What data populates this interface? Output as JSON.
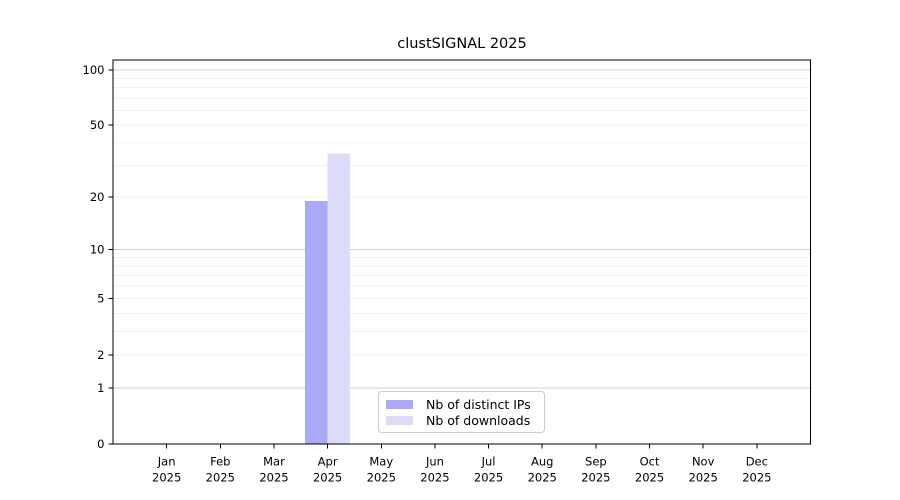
{
  "figure": {
    "background": "#ffffff"
  },
  "chart_data": {
    "type": "bar",
    "title": "clustSIGNAL 2025",
    "categories": [
      "Jan",
      "Feb",
      "Mar",
      "Apr",
      "May",
      "Jun",
      "Jul",
      "Aug",
      "Sep",
      "Oct",
      "Nov",
      "Dec"
    ],
    "x_tick_year_line": "2025",
    "series": [
      {
        "name": "Nb of distinct IPs",
        "key": "distinct-ips",
        "color": "#aaaaf8",
        "values": [
          0,
          0,
          0,
          19,
          0,
          0,
          0,
          0,
          0,
          0,
          0,
          0
        ]
      },
      {
        "name": "Nb of downloads",
        "key": "downloads",
        "color": "#dcdcfa",
        "values": [
          0,
          0,
          0,
          35,
          0,
          0,
          0,
          0,
          0,
          0,
          0,
          0
        ]
      }
    ],
    "yscale": "log1p",
    "ylim": [
      0,
      113
    ],
    "yticks": [
      0,
      1,
      2,
      5,
      10,
      20,
      50,
      100
    ],
    "major_gridlines": [
      1,
      10,
      100
    ],
    "minor_gridlines": [
      2,
      3,
      4,
      5,
      6,
      7,
      8,
      9,
      20,
      30,
      40,
      50,
      60,
      70,
      80,
      90
    ],
    "grid": "horizontal",
    "legend_position": "lower center",
    "colors": {
      "bar_distinct_ips": "#aaaaf8",
      "bar_downloads": "#dcdcfa",
      "major_grid": "#d2d2d2",
      "minor_grid": "#f0f0f0",
      "axis": "#000000",
      "tick_text": "#000000",
      "legend_border": "#cccccc"
    }
  }
}
